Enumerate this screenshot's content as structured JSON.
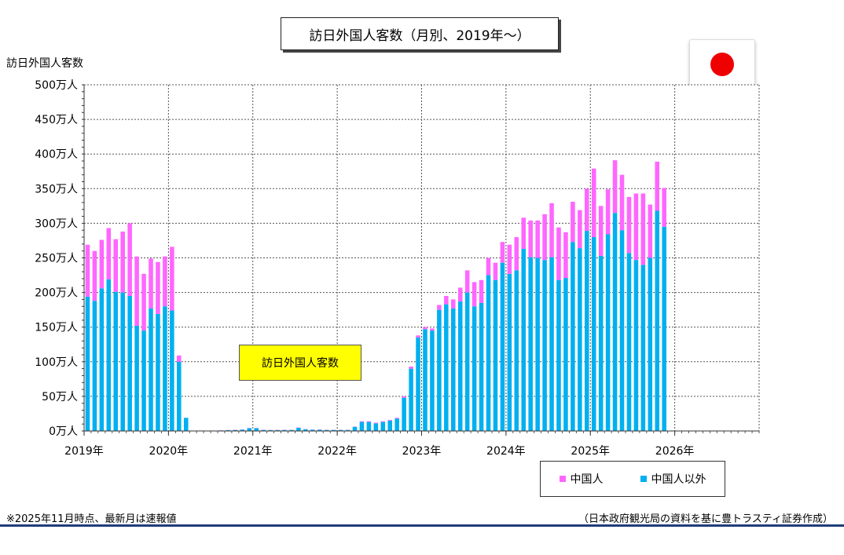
{
  "title": "訪日外国人客数（月別、2019年～）",
  "ylabel": "訪日外国人客数",
  "annotation": "訪日外国人客数",
  "footnote": "※2025年11月時点、最新月は速報値",
  "source": "（日本政府観光局の資料を基に豊トラスティ証券作成）",
  "colors": {
    "china": "#ff66ff",
    "others": "#00b0f0"
  },
  "legend": [
    {
      "label": "中国人",
      "color": "#ff66ff"
    },
    {
      "label": "中国人以外",
      "color": "#00b0f0"
    }
  ],
  "chart_data": {
    "type": "bar",
    "stacked": true,
    "unit": "万人",
    "ylim": [
      0,
      500
    ],
    "y_ticks": [
      "0万人",
      "50万人",
      "100万人",
      "150万人",
      "200万人",
      "250万人",
      "300万人",
      "350万人",
      "400万人",
      "450万人",
      "500万人"
    ],
    "x_ticks": [
      "2019年",
      "2020年",
      "2021年",
      "2022年",
      "2023年",
      "2024年",
      "2025年",
      "2026年"
    ],
    "x_range_months": 96,
    "grid": true,
    "legend_position": "bottom-right",
    "series": [
      {
        "name": "中国人以外",
        "color": "#00b0f0",
        "values": [
          194,
          188,
          206,
          219,
          201,
          200,
          195,
          152,
          145,
          177,
          169,
          180,
          174,
          100,
          19,
          0.3,
          0.2,
          0.2,
          0.4,
          0.8,
          1.2,
          1.5,
          2,
          4,
          4,
          1.5,
          1.2,
          1.4,
          1.5,
          1.5,
          4.5,
          2.5,
          1.8,
          1.8,
          1.5,
          1.5,
          1.5,
          1.5,
          6,
          13,
          13,
          11,
          13,
          15,
          18,
          48,
          90,
          135,
          147,
          145,
          175,
          183,
          177,
          187,
          200,
          180,
          185,
          225,
          218,
          243,
          227,
          232,
          263,
          251,
          250,
          247,
          251,
          218,
          221,
          273,
          264,
          289,
          280,
          253,
          284,
          315,
          290,
          257,
          247,
          240,
          250,
          318,
          295
        ]
      },
      {
        "name": "中国人",
        "color": "#ff66ff",
        "values": [
          75,
          72,
          70,
          74,
          76,
          88,
          105,
          100,
          82,
          72,
          75,
          72,
          92,
          9,
          0.1,
          0,
          0,
          0,
          0.1,
          0.2,
          0.2,
          0.3,
          0.3,
          0.3,
          0.3,
          0.3,
          0.3,
          0.3,
          0.3,
          0.3,
          0.5,
          0.3,
          0.3,
          0.3,
          0.3,
          0.3,
          0.3,
          0.3,
          0.3,
          1,
          1,
          1,
          1,
          1,
          1,
          2,
          3,
          3,
          3,
          3,
          7,
          12,
          13,
          20,
          32,
          35,
          33,
          25,
          25,
          30,
          42,
          48,
          45,
          53,
          54,
          66,
          78,
          76,
          66,
          58,
          55,
          61,
          99,
          72,
          65,
          76,
          80,
          81,
          96,
          103,
          77,
          71,
          56
        ]
      }
    ]
  }
}
